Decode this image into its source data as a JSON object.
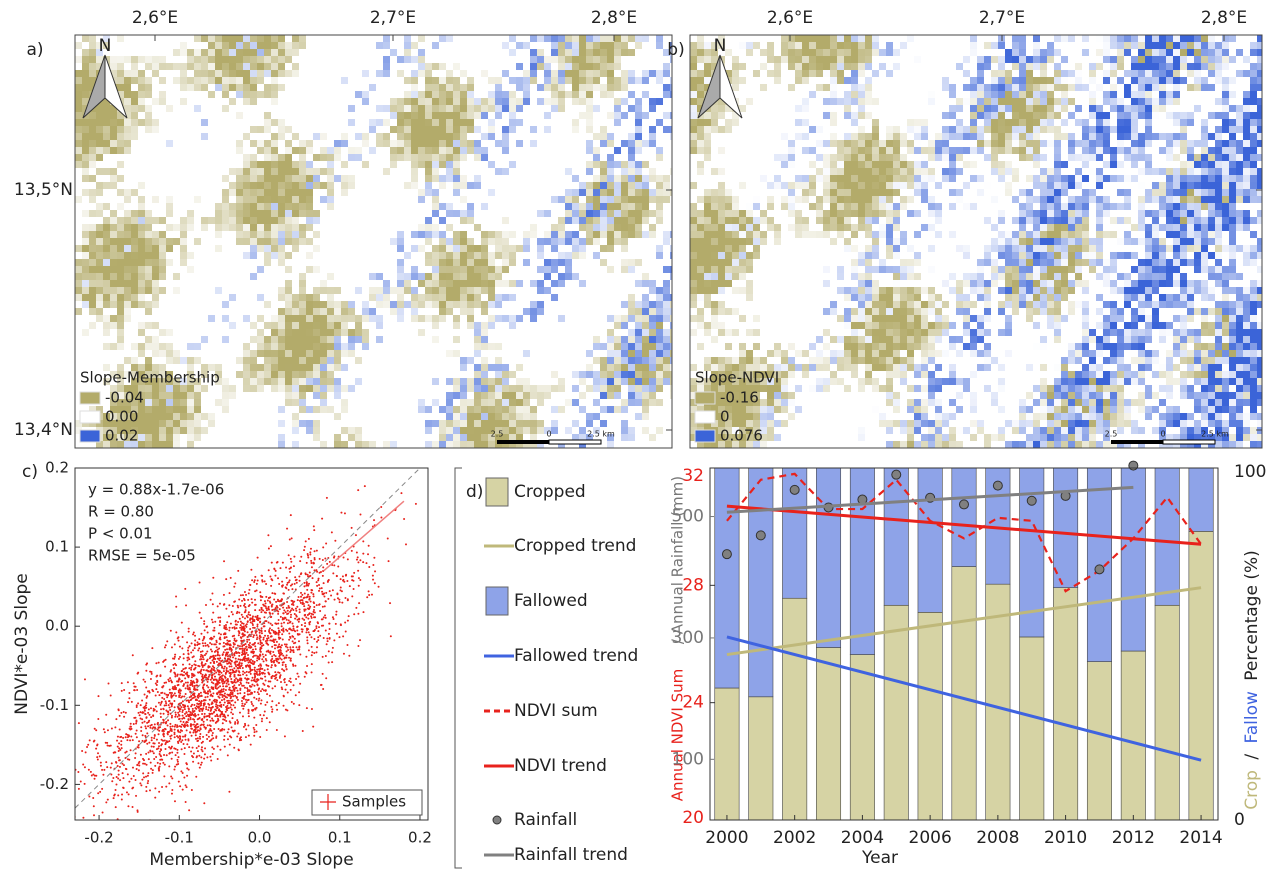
{
  "chart_data": [
    {
      "type": "map",
      "panel_label": "a)",
      "north": "N",
      "x_labels": [
        "2,6°E",
        "2,7°E",
        "2,8°E"
      ],
      "y_labels": [
        "13,5°N",
        "13,4°N"
      ],
      "legend": {
        "title": "Slope-Membership",
        "items": [
          {
            "label": "-0.04",
            "color": "#b3ab6a"
          },
          {
            "label": "0.00",
            "color": "#ffffff"
          },
          {
            "label": "0.02",
            "color": "#3b64d8"
          }
        ]
      },
      "scale_bar": [
        "2.5",
        "0",
        "2.5 km"
      ]
    },
    {
      "type": "map",
      "panel_label": "b)",
      "north": "N",
      "x_labels": [
        "2,6°E",
        "2,7°E",
        "2,8°E"
      ],
      "legend": {
        "title": "Slope-NDVI",
        "items": [
          {
            "label": "-0.16",
            "color": "#b3ab6a"
          },
          {
            "label": "0",
            "color": "#ffffff"
          },
          {
            "label": "0.076",
            "color": "#3b64d8"
          }
        ]
      },
      "scale_bar": [
        "2.5",
        "0",
        "2.5 km"
      ]
    },
    {
      "type": "scatter",
      "panel_label": "c)",
      "xlabel": "Membership*e-03 Slope",
      "ylabel": "NDVI*e-03 Slope",
      "annotations": [
        "y = 0.88x-1.7e-06",
        "R = 0.80",
        "P < 0.01",
        "RMSE = 5e-05"
      ],
      "legend_label": "Samples",
      "color": "#e8221c",
      "xlim": [
        -0.23,
        0.21
      ],
      "ylim": [
        -0.245,
        0.2
      ],
      "xticks": [
        -0.2,
        -0.1,
        {
          "value": 0,
          "label": "0.0"
        },
        0.1,
        0.2
      ],
      "yticks": [
        -0.2,
        -0.1,
        {
          "value": 0,
          "label": "0.0"
        },
        0.1,
        0.2
      ],
      "fit_line": {
        "x": [
          0.08,
          0.18
        ],
        "y": [
          0.07,
          0.158
        ]
      }
    },
    {
      "type": "combo",
      "panel_label": "d)",
      "xlabel": "Year",
      "x": [
        2000,
        2001,
        2002,
        2003,
        2004,
        2005,
        2006,
        2007,
        2008,
        2009,
        2010,
        2011,
        2012,
        2013,
        2014
      ],
      "xlim": [
        1999.5,
        2014.5
      ],
      "xticks": [
        2000,
        2002,
        2004,
        2006,
        2008,
        2010,
        2012,
        2014
      ],
      "ylim": [
        20,
        32
      ],
      "yticks": [
        20,
        24,
        28,
        32
      ],
      "ylabel": "Annual NDVI Sum",
      "y3lim": [
        0,
        580
      ],
      "y3ticks": [
        100,
        300,
        500
      ],
      "y3label": "/ Annual Rainfall (mm)",
      "y2lim": [
        0,
        100
      ],
      "y2ticks": [
        0,
        100
      ],
      "y2label": [
        "Crop",
        "/",
        "Fallow",
        "Percentage (%)"
      ],
      "series": [
        {
          "name": "Cropped",
          "kind": "bar",
          "axis": "y2",
          "color": "#d6d3a4",
          "values": [
            37.5,
            35,
            63,
            49,
            47,
            61,
            59,
            72,
            67,
            52,
            66,
            45,
            48,
            61,
            82
          ]
        },
        {
          "name": "Cropped trend",
          "kind": "line",
          "axis": "y2",
          "color": "#bfb87a",
          "x": [
            2000,
            2014
          ],
          "values": [
            47,
            66
          ]
        },
        {
          "name": "Fallowed",
          "kind": "bar",
          "axis": "y2",
          "color": "#8ea3e8",
          "values": [
            62.5,
            65,
            37,
            51,
            53,
            39,
            41,
            28,
            33,
            48,
            34,
            55,
            52,
            39,
            18
          ]
        },
        {
          "name": "Fallowed trend",
          "kind": "line",
          "axis": "y2",
          "color": "#3f63e0",
          "x": [
            2000,
            2014
          ],
          "values": [
            52,
            17
          ]
        },
        {
          "name": "NDVI sum",
          "kind": "dashed",
          "axis": "y",
          "color": "#e8221c",
          "values": [
            30.2,
            31.6,
            31.8,
            30.6,
            30.6,
            31.6,
            30.2,
            29.6,
            30.3,
            30.2,
            27.8,
            28.5,
            29.6,
            31.0,
            29.4
          ]
        },
        {
          "name": "NDVI trend",
          "kind": "line",
          "axis": "y",
          "color": "#e8221c",
          "x": [
            2000,
            2014
          ],
          "values": [
            30.7,
            29.4
          ]
        },
        {
          "name": "Rainfall",
          "kind": "points",
          "axis": "y3",
          "color": "#808080",
          "values": [
            438,
            469,
            544,
            515,
            528,
            569,
            531,
            520,
            551,
            526,
            534,
            413,
            584,
            null,
            null
          ]
        },
        {
          "name": "Rainfall trend",
          "kind": "line",
          "axis": "y3",
          "color": "#808080",
          "x": [
            2000,
            2012
          ],
          "values": [
            507,
            548
          ]
        }
      ]
    }
  ]
}
